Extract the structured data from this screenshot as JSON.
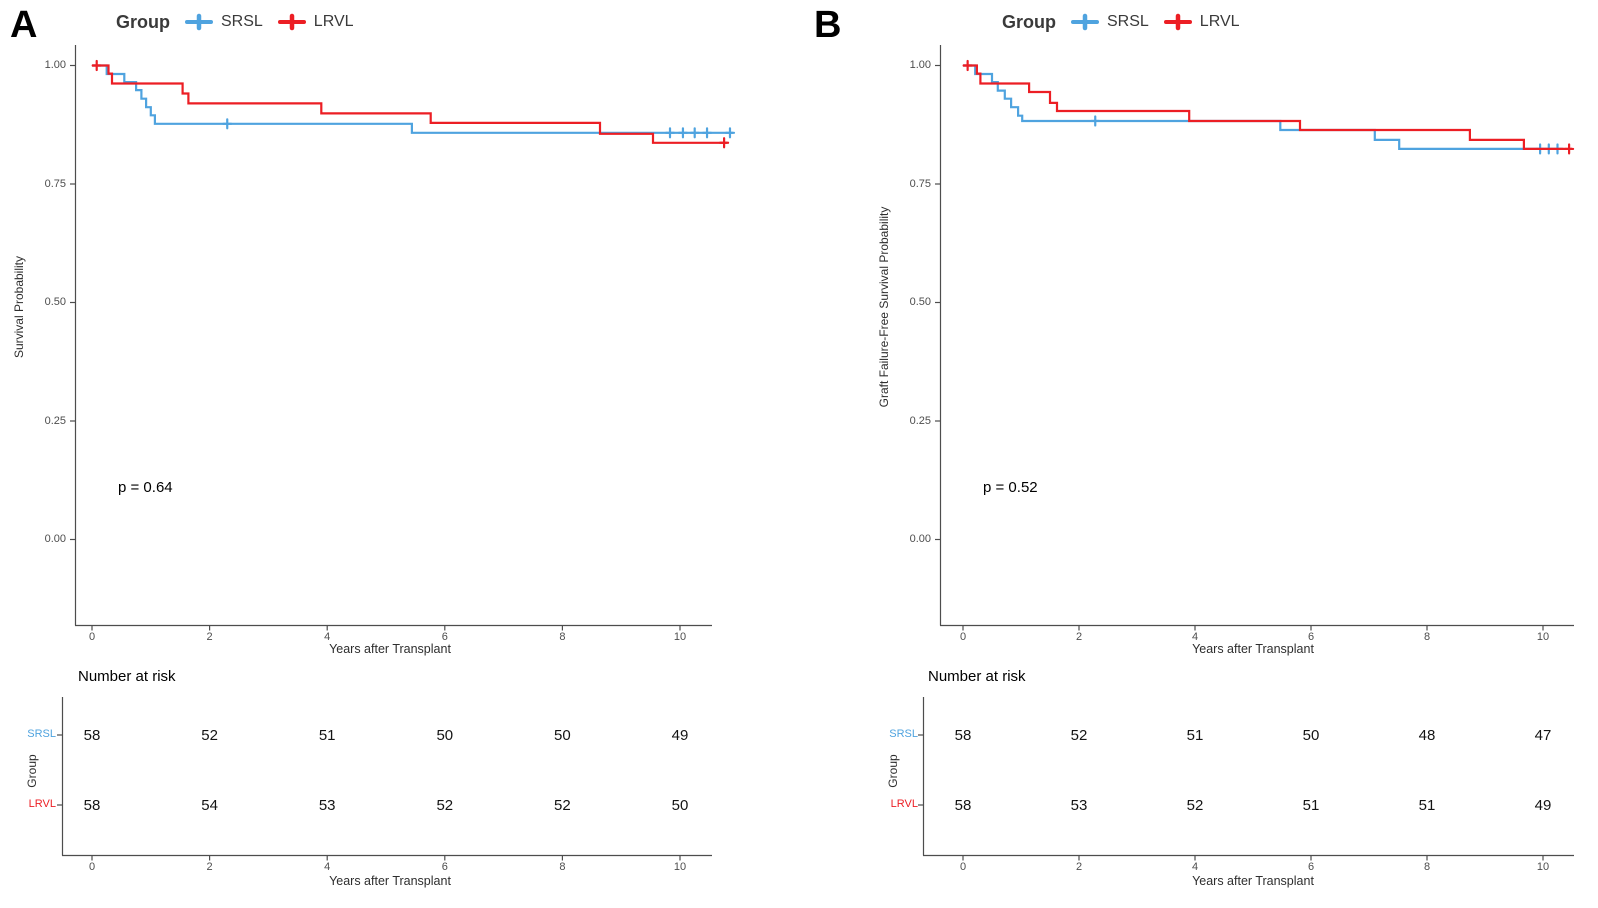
{
  "chart_data": [
    {
      "type": "line",
      "subtype": "kaplan-meier",
      "panel_label": "A",
      "legend": {
        "title": "Group"
      },
      "xlabel": "Years after Transplant",
      "ylabel": "Survival Probability",
      "p_value_text": "p = 0.64",
      "xlim": [
        0,
        10.9
      ],
      "ylim": [
        0,
        1.0
      ],
      "grid": false,
      "legend_position": "top",
      "xticks": [
        0,
        2,
        4,
        6,
        8,
        10
      ],
      "yticks": [
        1.0,
        0.75,
        0.5,
        0.25,
        0.0
      ],
      "ytick_labels": [
        "1.00",
        "0.75",
        "0.50",
        "0.25",
        "0.00"
      ],
      "series": [
        {
          "name": "SRSL",
          "color": "#4FA3DF",
          "steps": [
            [
              0,
              1.0
            ],
            [
              0.25,
              0.982
            ],
            [
              0.55,
              0.965
            ],
            [
              0.75,
              0.948
            ],
            [
              0.84,
              0.93
            ],
            [
              0.92,
              0.912
            ],
            [
              1.0,
              0.895
            ],
            [
              1.07,
              0.877
            ],
            [
              5.44,
              0.858
            ],
            [
              10.9,
              0.858
            ]
          ],
          "censors": [
            [
              2.3,
              0.877
            ],
            [
              9.83,
              0.858
            ],
            [
              10.05,
              0.858
            ],
            [
              10.25,
              0.858
            ],
            [
              10.46,
              0.858
            ],
            [
              10.85,
              0.858
            ]
          ]
        },
        {
          "name": "LRVL",
          "color": "#EC1E24",
          "steps": [
            [
              0,
              1.0
            ],
            [
              0.28,
              0.983
            ],
            [
              0.34,
              0.962
            ],
            [
              1.54,
              0.941
            ],
            [
              1.64,
              0.92
            ],
            [
              3.9,
              0.899
            ],
            [
              5.76,
              0.879
            ],
            [
              8.64,
              0.856
            ],
            [
              9.54,
              0.837
            ],
            [
              10.8,
              0.837
            ]
          ],
          "censors": [
            [
              0.08,
              1.0
            ],
            [
              10.75,
              0.837
            ]
          ]
        }
      ],
      "risk_table": {
        "title": "Number at risk",
        "group_label": "Group",
        "xlabel": "Years after Transplant",
        "rows": [
          {
            "label": "SRSL",
            "color": "#4FA3DF",
            "values": [
              58,
              52,
              51,
              50,
              50,
              49
            ]
          },
          {
            "label": "LRVL",
            "color": "#EC1E24",
            "values": [
              58,
              54,
              53,
              52,
              52,
              50
            ]
          }
        ]
      }
    },
    {
      "type": "line",
      "subtype": "kaplan-meier",
      "panel_label": "B",
      "legend": {
        "title": "Group"
      },
      "xlabel": "Years after Transplant",
      "ylabel": "Graft Failure-Free Survival Probability",
      "p_value_text": "p = 0.52",
      "xlim": [
        0,
        10.6
      ],
      "ylim": [
        0,
        1.0
      ],
      "grid": false,
      "legend_position": "top",
      "xticks": [
        0,
        2,
        4,
        6,
        8,
        10
      ],
      "yticks": [
        1.0,
        0.75,
        0.5,
        0.25,
        0.0
      ],
      "ytick_labels": [
        "1.00",
        "0.75",
        "0.50",
        "0.25",
        "0.00"
      ],
      "series": [
        {
          "name": "SRSL",
          "color": "#4FA3DF",
          "steps": [
            [
              0,
              1.0
            ],
            [
              0.21,
              0.982
            ],
            [
              0.5,
              0.965
            ],
            [
              0.6,
              0.947
            ],
            [
              0.72,
              0.93
            ],
            [
              0.83,
              0.912
            ],
            [
              0.95,
              0.894
            ],
            [
              1.02,
              0.883
            ],
            [
              5.47,
              0.864
            ],
            [
              7.1,
              0.843
            ],
            [
              7.52,
              0.824
            ],
            [
              10.35,
              0.824
            ]
          ],
          "censors": [
            [
              2.28,
              0.883
            ],
            [
              9.95,
              0.824
            ],
            [
              10.1,
              0.824
            ],
            [
              10.25,
              0.824
            ]
          ]
        },
        {
          "name": "LRVL",
          "color": "#EC1E24",
          "steps": [
            [
              0,
              1.0
            ],
            [
              0.24,
              0.983
            ],
            [
              0.3,
              0.962
            ],
            [
              1.14,
              0.944
            ],
            [
              1.5,
              0.921
            ],
            [
              1.62,
              0.904
            ],
            [
              3.9,
              0.883
            ],
            [
              5.81,
              0.864
            ],
            [
              8.74,
              0.843
            ],
            [
              9.67,
              0.824
            ],
            [
              10.5,
              0.824
            ]
          ],
          "censors": [
            [
              0.08,
              1.0
            ],
            [
              10.45,
              0.824
            ]
          ]
        }
      ],
      "risk_table": {
        "title": "Number at risk",
        "group_label": "Group",
        "xlabel": "Years after Transplant",
        "rows": [
          {
            "label": "SRSL",
            "color": "#4FA3DF",
            "values": [
              58,
              52,
              51,
              50,
              48,
              47
            ]
          },
          {
            "label": "LRVL",
            "color": "#EC1E24",
            "values": [
              58,
              53,
              52,
              51,
              51,
              49
            ]
          }
        ]
      }
    }
  ]
}
